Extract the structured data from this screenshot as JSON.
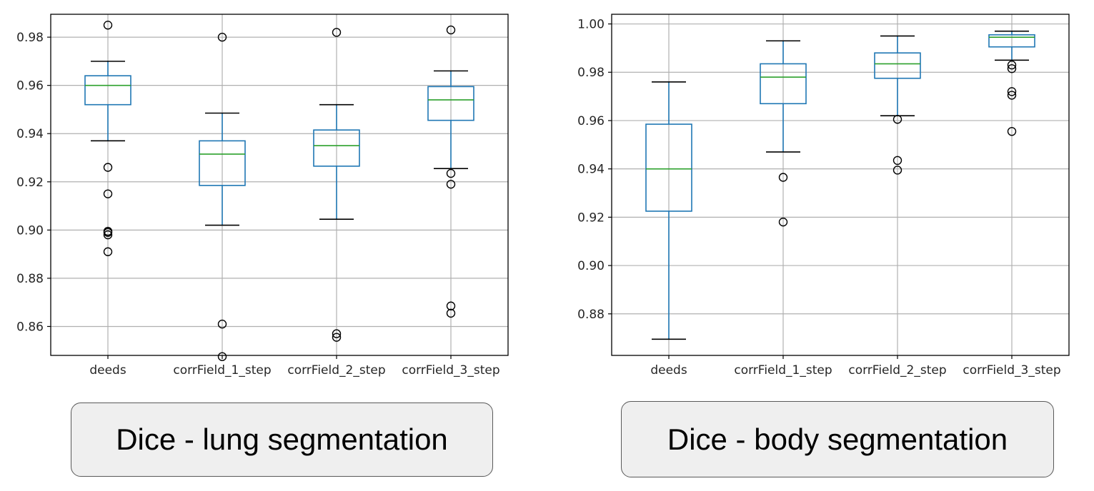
{
  "chart_data": [
    {
      "type": "box",
      "caption": "Dice - lung segmentation",
      "categories": [
        "deeds",
        "corrField_1_step",
        "corrField_2_step",
        "corrField_3_step"
      ],
      "yticks": [
        "0.86",
        "0.88",
        "0.90",
        "0.92",
        "0.94",
        "0.96",
        "0.98"
      ],
      "ylim": [
        0.848,
        0.9895
      ],
      "grid": true,
      "box_color": "#1f77b4",
      "median_color": "#2ca02c",
      "boxes": [
        {
          "whisker_low": 0.937,
          "q1": 0.952,
          "median": 0.96,
          "q3": 0.964,
          "whisker_high": 0.97,
          "fliers": [
            0.985,
            0.926,
            0.915,
            0.8995,
            0.899,
            0.898,
            0.891
          ]
        },
        {
          "whisker_low": 0.902,
          "q1": 0.9185,
          "median": 0.9315,
          "q3": 0.937,
          "whisker_high": 0.9485,
          "fliers": [
            0.98,
            0.861,
            0.8475
          ]
        },
        {
          "whisker_low": 0.9045,
          "q1": 0.9265,
          "median": 0.935,
          "q3": 0.9415,
          "whisker_high": 0.952,
          "fliers": [
            0.982,
            0.857,
            0.8555
          ]
        },
        {
          "whisker_low": 0.9255,
          "q1": 0.9455,
          "median": 0.954,
          "q3": 0.9595,
          "whisker_high": 0.966,
          "fliers": [
            0.983,
            0.9235,
            0.919,
            0.8685,
            0.8655
          ]
        }
      ]
    },
    {
      "type": "box",
      "caption": "Dice - body segmentation",
      "categories": [
        "deeds",
        "corrField_1_step",
        "corrField_2_step",
        "corrField_3_step"
      ],
      "yticks": [
        "0.88",
        "0.90",
        "0.92",
        "0.94",
        "0.96",
        "0.98",
        "1.00"
      ],
      "ylim": [
        0.8628,
        1.004
      ],
      "grid": true,
      "box_color": "#1f77b4",
      "median_color": "#2ca02c",
      "boxes": [
        {
          "whisker_low": 0.8695,
          "q1": 0.9225,
          "median": 0.94,
          "q3": 0.9585,
          "whisker_high": 0.976,
          "fliers": []
        },
        {
          "whisker_low": 0.947,
          "q1": 0.967,
          "median": 0.978,
          "q3": 0.9835,
          "whisker_high": 0.993,
          "fliers": [
            0.9365,
            0.918
          ]
        },
        {
          "whisker_low": 0.962,
          "q1": 0.9775,
          "median": 0.9835,
          "q3": 0.988,
          "whisker_high": 0.995,
          "fliers": [
            0.9605,
            0.9435,
            0.9395
          ]
        },
        {
          "whisker_low": 0.985,
          "q1": 0.9905,
          "median": 0.9945,
          "q3": 0.9955,
          "whisker_high": 0.997,
          "fliers": [
            0.983,
            0.9815,
            0.972,
            0.9705,
            0.9555
          ]
        }
      ]
    }
  ]
}
